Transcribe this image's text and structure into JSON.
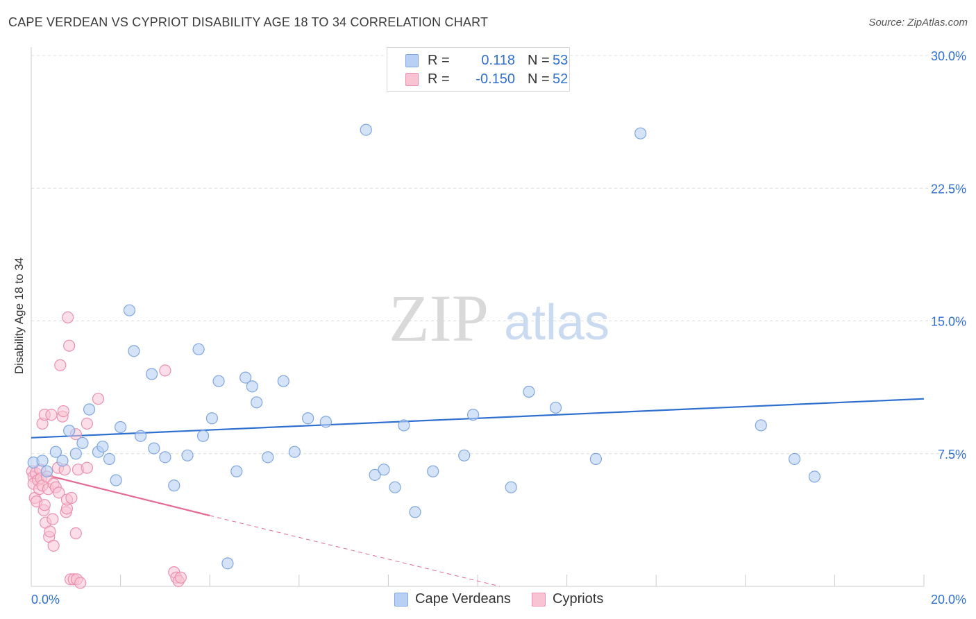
{
  "title": "CAPE VERDEAN VS CYPRIOT DISABILITY AGE 18 TO 34 CORRELATION CHART",
  "source": "Source: ZipAtlas.com",
  "watermark": {
    "zip": "ZIP",
    "atlas": "atlas"
  },
  "legend": {
    "r_label": "R =",
    "n_label": "N =",
    "series": [
      {
        "r": "0.118",
        "n": "53"
      },
      {
        "r": "-0.150",
        "n": "52"
      }
    ]
  },
  "colors": {
    "blue_fill": "#b7d0f3",
    "blue_stroke": "#7fa6e0",
    "blue_line": "#2f6fcf",
    "pink_fill": "#f8c3d3",
    "pink_stroke": "#ec8fae",
    "pink_line": "#e46a95",
    "grid": "#dcdcdc",
    "axis_label": "#2f6fcf"
  },
  "chart_data": {
    "type": "scatter",
    "title": "CAPE VERDEAN VS CYPRIOT DISABILITY AGE 18 TO 34 CORRELATION CHART",
    "xlabel": "",
    "ylabel": "Disability Age 18 to 34",
    "xlim": [
      0,
      20
    ],
    "ylim": [
      0,
      30
    ],
    "x_tick_labels": [
      "0.0%",
      "20.0%"
    ],
    "y_ticks": [
      7.5,
      15.0,
      22.5,
      30.0
    ],
    "y_tick_labels": [
      "7.5%",
      "15.0%",
      "22.5%",
      "30.0%"
    ],
    "series": [
      {
        "name": "Cape Verdeans",
        "r": 0.118,
        "n": 53,
        "trend": {
          "x": [
            0,
            20
          ],
          "y": [
            8.4,
            10.6
          ],
          "dashed_to": null
        },
        "points": [
          [
            0.05,
            7.0
          ],
          [
            0.25,
            7.1
          ],
          [
            0.35,
            6.5
          ],
          [
            0.55,
            7.6
          ],
          [
            0.7,
            7.1
          ],
          [
            0.85,
            8.8
          ],
          [
            1.0,
            7.5
          ],
          [
            1.15,
            8.1
          ],
          [
            1.3,
            10.0
          ],
          [
            1.5,
            7.6
          ],
          [
            1.6,
            7.9
          ],
          [
            1.75,
            7.2
          ],
          [
            1.9,
            6.0
          ],
          [
            2.0,
            9.0
          ],
          [
            2.2,
            15.6
          ],
          [
            2.3,
            13.3
          ],
          [
            2.45,
            8.5
          ],
          [
            2.7,
            12.0
          ],
          [
            2.75,
            7.8
          ],
          [
            3.0,
            7.3
          ],
          [
            3.2,
            5.7
          ],
          [
            3.5,
            7.4
          ],
          [
            3.75,
            13.4
          ],
          [
            3.85,
            8.5
          ],
          [
            4.05,
            9.5
          ],
          [
            4.2,
            11.6
          ],
          [
            4.4,
            1.3
          ],
          [
            4.6,
            6.5
          ],
          [
            4.8,
            11.8
          ],
          [
            4.95,
            11.3
          ],
          [
            5.05,
            10.4
          ],
          [
            5.3,
            7.3
          ],
          [
            5.65,
            11.6
          ],
          [
            5.9,
            7.6
          ],
          [
            6.2,
            9.5
          ],
          [
            6.6,
            9.3
          ],
          [
            7.5,
            25.8
          ],
          [
            7.7,
            6.3
          ],
          [
            7.9,
            6.6
          ],
          [
            8.15,
            5.6
          ],
          [
            8.35,
            9.1
          ],
          [
            8.6,
            4.2
          ],
          [
            9.0,
            6.5
          ],
          [
            9.7,
            7.4
          ],
          [
            9.9,
            9.7
          ],
          [
            10.75,
            5.6
          ],
          [
            11.15,
            11.0
          ],
          [
            11.75,
            10.1
          ],
          [
            12.65,
            7.2
          ],
          [
            13.65,
            25.6
          ],
          [
            16.35,
            9.1
          ],
          [
            17.1,
            7.2
          ],
          [
            17.55,
            6.2
          ]
        ]
      },
      {
        "name": "Cypriots",
        "r": -0.15,
        "n": 52,
        "trend": {
          "x": [
            0,
            4.0
          ],
          "y": [
            6.5,
            4.0
          ],
          "dashed_to": [
            10.5,
            0
          ]
        },
        "points": [
          [
            0.02,
            6.5
          ],
          [
            0.05,
            6.2
          ],
          [
            0.05,
            5.8
          ],
          [
            0.08,
            5.0
          ],
          [
            0.1,
            6.4
          ],
          [
            0.12,
            4.8
          ],
          [
            0.15,
            6.0
          ],
          [
            0.18,
            5.5
          ],
          [
            0.2,
            6.6
          ],
          [
            0.22,
            6.1
          ],
          [
            0.25,
            5.7
          ],
          [
            0.25,
            9.2
          ],
          [
            0.28,
            4.3
          ],
          [
            0.3,
            4.6
          ],
          [
            0.3,
            9.7
          ],
          [
            0.32,
            3.6
          ],
          [
            0.35,
            6.2
          ],
          [
            0.38,
            5.5
          ],
          [
            0.4,
            2.8
          ],
          [
            0.42,
            3.1
          ],
          [
            0.45,
            9.7
          ],
          [
            0.48,
            3.8
          ],
          [
            0.5,
            5.8
          ],
          [
            0.5,
            2.3
          ],
          [
            0.55,
            5.6
          ],
          [
            0.6,
            6.7
          ],
          [
            0.62,
            5.3
          ],
          [
            0.65,
            12.5
          ],
          [
            0.7,
            9.6
          ],
          [
            0.72,
            9.9
          ],
          [
            0.75,
            6.6
          ],
          [
            0.78,
            4.2
          ],
          [
            0.8,
            4.4
          ],
          [
            0.8,
            4.9
          ],
          [
            0.82,
            15.2
          ],
          [
            0.85,
            13.6
          ],
          [
            0.88,
            0.4
          ],
          [
            0.9,
            5.0
          ],
          [
            0.95,
            0.4
          ],
          [
            1.0,
            3.0
          ],
          [
            1.0,
            8.6
          ],
          [
            1.02,
            0.4
          ],
          [
            1.05,
            6.6
          ],
          [
            1.1,
            0.2
          ],
          [
            1.25,
            6.7
          ],
          [
            1.25,
            9.2
          ],
          [
            1.5,
            10.6
          ],
          [
            3.0,
            12.2
          ],
          [
            3.2,
            0.8
          ],
          [
            3.25,
            0.5
          ],
          [
            3.3,
            0.3
          ],
          [
            3.35,
            0.5
          ]
        ]
      }
    ]
  }
}
